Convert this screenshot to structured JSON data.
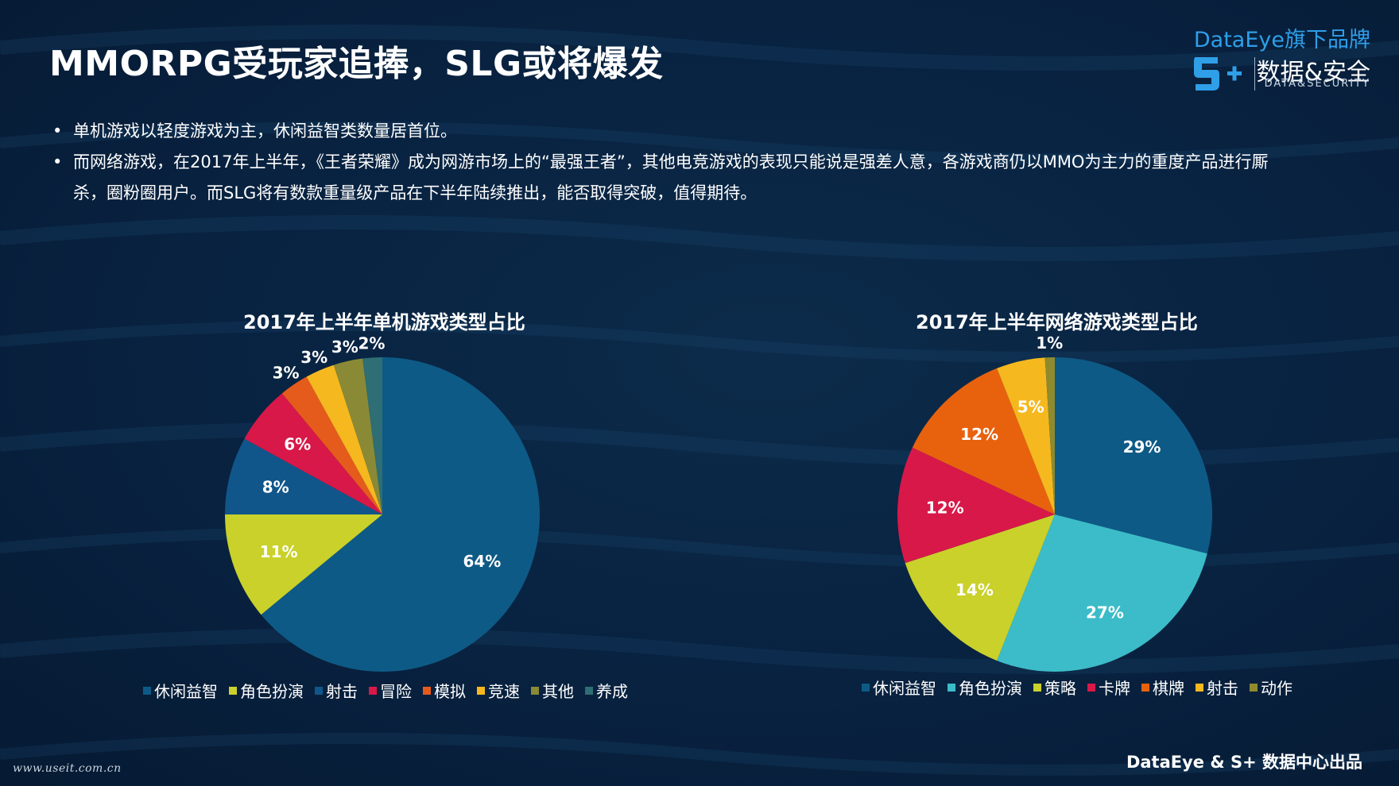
{
  "title": "MMORPG受玩家追捧，SLG或将爆发",
  "brand": {
    "top": "DataEye旗下品牌",
    "cn": "数据&安全",
    "en": "DATA&SECURITY"
  },
  "bullets": [
    "单机游戏以轻度游戏为主，休闲益智类数量居首位。",
    "而网络游戏，在2017年上半年，《王者荣耀》成为网游市场上的“最强王者”，其他电竞游戏的表现只能说是强差人意，各游戏商仍以MMO为主力的重度产品进行厮杀，圈粉圈用户。而SLG将有数款重量级产品在下半年陆续推出，能否取得突破，值得期待。"
  ],
  "footer": "DataEye & S+ 数据中心出品",
  "watermark": "www.useit.com.cn",
  "chart_data": [
    {
      "type": "pie",
      "title": "2017年上半年单机游戏类型占比",
      "categories": [
        "休闲益智",
        "角色扮演",
        "射击",
        "冒险",
        "模拟",
        "竞速",
        "其他",
        "养成"
      ],
      "values": [
        64,
        11,
        8,
        6,
        3,
        3,
        3,
        2
      ],
      "labels": [
        "64%",
        "11%",
        "8%",
        "6%",
        "3%",
        "3%",
        "3%",
        "2%"
      ],
      "colors": [
        "#0e5a86",
        "#c9d12a",
        "#11568a",
        "#d81848",
        "#e55b1c",
        "#f5b81e",
        "#8a8a36",
        "#2e6e74"
      ],
      "legend": "bottom"
    },
    {
      "type": "pie",
      "title": "2017年上半年网络游戏类型占比",
      "categories": [
        "休闲益智",
        "角色扮演",
        "策略",
        "卡牌",
        "棋牌",
        "射击",
        "动作"
      ],
      "values": [
        29,
        27,
        14,
        12,
        12,
        5,
        1
      ],
      "labels": [
        "29%",
        "27%",
        "14%",
        "12%",
        "12%",
        "5%",
        "1%"
      ],
      "colors": [
        "#0e5a86",
        "#3cbcc8",
        "#c9d12a",
        "#d81848",
        "#e8620e",
        "#f5b81e",
        "#8f8a2e"
      ],
      "legend": "bottom"
    }
  ]
}
